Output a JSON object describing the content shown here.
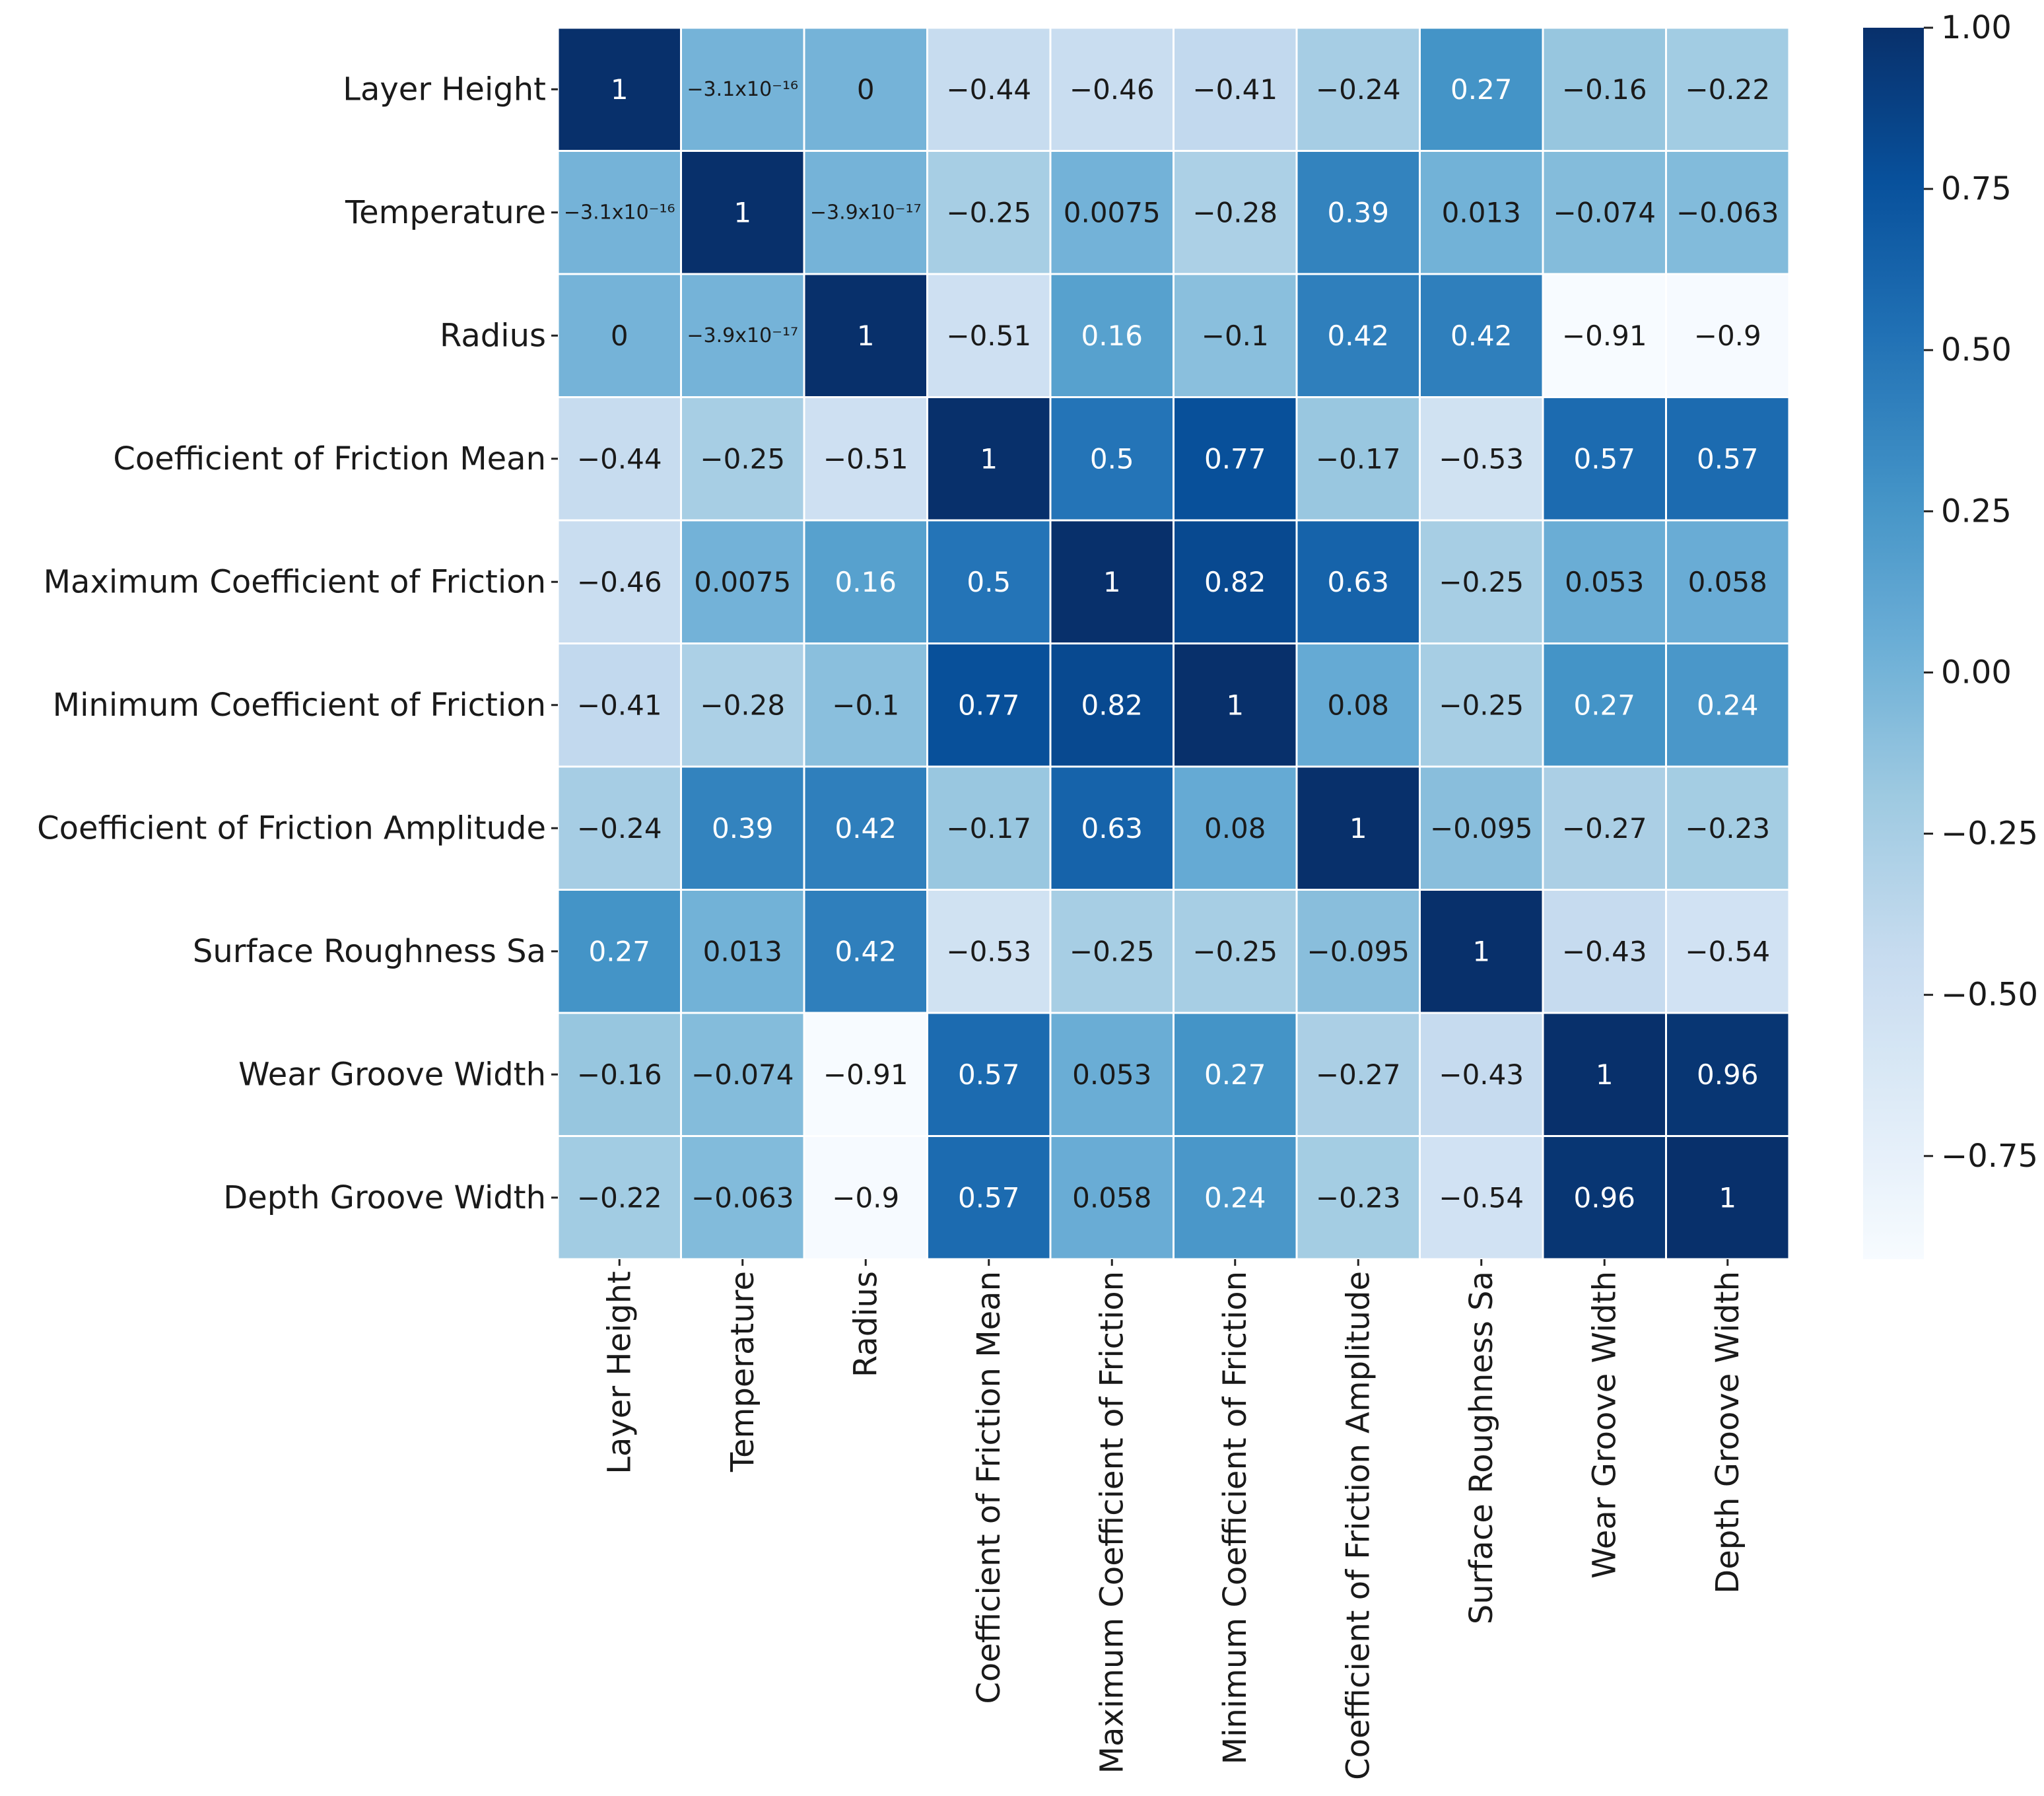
{
  "chart_data": {
    "type": "heatmap",
    "title": "",
    "xlabel": "",
    "ylabel": "",
    "row_labels": [
      "Layer Height",
      "Temperature",
      "Radius",
      "Coefficient of Friction Mean",
      "Maximum Coefficient of Friction",
      "Minimum Coefficient of Friction",
      "Coefficient of Friction Amplitude",
      "Surface Roughness Sa",
      "Wear Groove Width",
      "Depth Groove Width"
    ],
    "col_labels": [
      "Layer Height",
      "Temperature",
      "Radius",
      "Coefficient of Friction Mean",
      "Maximum Coefficient of Friction",
      "Minimum Coefficient of Friction",
      "Coefficient of Friction Amplitude",
      "Surface Roughness Sa",
      "Wear Groove Width",
      "Depth Groove Width"
    ],
    "values": [
      [
        1,
        -3.1e-16,
        0,
        -0.44,
        -0.46,
        -0.41,
        -0.24,
        0.27,
        -0.16,
        -0.22
      ],
      [
        -3.1e-16,
        1,
        -3.9e-17,
        -0.25,
        0.0075,
        -0.28,
        0.39,
        0.013,
        -0.074,
        -0.063
      ],
      [
        0,
        -3.9e-17,
        1,
        -0.51,
        0.16,
        -0.1,
        0.42,
        0.42,
        -0.91,
        -0.9
      ],
      [
        -0.44,
        -0.25,
        -0.51,
        1,
        0.5,
        0.77,
        -0.17,
        -0.53,
        0.57,
        0.57
      ],
      [
        -0.46,
        0.0075,
        0.16,
        0.5,
        1,
        0.82,
        0.63,
        -0.25,
        0.053,
        0.058
      ],
      [
        -0.41,
        -0.28,
        -0.1,
        0.77,
        0.82,
        1,
        0.08,
        -0.25,
        0.27,
        0.24
      ],
      [
        -0.24,
        0.39,
        0.42,
        -0.17,
        0.63,
        0.08,
        1,
        -0.095,
        -0.27,
        -0.23
      ],
      [
        0.27,
        0.013,
        0.42,
        -0.53,
        -0.25,
        -0.25,
        -0.095,
        1,
        -0.43,
        -0.54
      ],
      [
        -0.16,
        -0.074,
        -0.91,
        0.57,
        0.053,
        0.27,
        -0.27,
        -0.43,
        1,
        0.96
      ],
      [
        -0.22,
        -0.063,
        -0.9,
        0.57,
        0.058,
        0.24,
        -0.23,
        -0.54,
        0.96,
        1
      ]
    ],
    "annotations": [
      [
        "1",
        "−3.1x10⁻¹⁶",
        "0",
        "−0.44",
        "−0.46",
        "−0.41",
        "−0.24",
        "0.27",
        "−0.16",
        "−0.22"
      ],
      [
        "−3.1x10⁻¹⁶",
        "1",
        "−3.9x10⁻¹⁷",
        "−0.25",
        "0.0075",
        "−0.28",
        "0.39",
        "0.013",
        "−0.074",
        "−0.063"
      ],
      [
        "0",
        "−3.9x10⁻¹⁷",
        "1",
        "−0.51",
        "0.16",
        "−0.1",
        "0.42",
        "0.42",
        "−0.91",
        "−0.9"
      ],
      [
        "−0.44",
        "−0.25",
        "−0.51",
        "1",
        "0.5",
        "0.77",
        "−0.17",
        "−0.53",
        "0.57",
        "0.57"
      ],
      [
        "−0.46",
        "0.0075",
        "0.16",
        "0.5",
        "1",
        "0.82",
        "0.63",
        "−0.25",
        "0.053",
        "0.058"
      ],
      [
        "−0.41",
        "−0.28",
        "−0.1",
        "0.77",
        "0.82",
        "1",
        "0.08",
        "−0.25",
        "0.27",
        "0.24"
      ],
      [
        "−0.24",
        "0.39",
        "0.42",
        "−0.17",
        "0.63",
        "0.08",
        "1",
        "−0.095",
        "−0.27",
        "−0.23"
      ],
      [
        "0.27",
        "0.013",
        "0.42",
        "−0.53",
        "−0.25",
        "−0.25",
        "−0.095",
        "1",
        "−0.43",
        "−0.54"
      ],
      [
        "−0.16",
        "−0.074",
        "−0.91",
        "0.57",
        "0.053",
        "0.27",
        "−0.27",
        "−0.43",
        "1",
        "0.96"
      ],
      [
        "−0.22",
        "−0.063",
        "−0.9",
        "0.57",
        "0.058",
        "0.24",
        "−0.23",
        "−0.54",
        "0.96",
        "1"
      ]
    ],
    "colormap": "Blues",
    "value_range": [
      -0.91,
      1.0
    ],
    "colorbar": {
      "ticks": [
        1.0,
        0.75,
        0.5,
        0.25,
        0.0,
        -0.25,
        -0.5,
        -0.75
      ],
      "tick_labels": [
        "1.00",
        "0.75",
        "0.50",
        "0.25",
        "0.00",
        "−0.25",
        "−0.50",
        "−0.75"
      ]
    },
    "colors": {
      "colormap_stops": [
        "#f7fbff",
        "#deebf7",
        "#c6dbef",
        "#9ecae1",
        "#6baed6",
        "#4292c6",
        "#2171b5",
        "#08519c",
        "#08306b"
      ],
      "gridline": "#ffffff",
      "text_light": "#ffffff",
      "text_dark": "#1a1a1a"
    }
  }
}
